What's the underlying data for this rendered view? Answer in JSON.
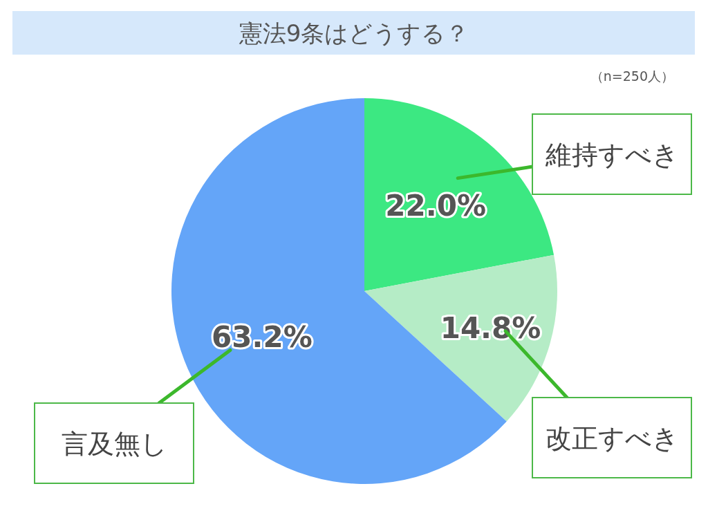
{
  "chart_data": {
    "type": "pie",
    "title": "憲法9条はどうする？",
    "annotations": [
      "（n=250人）"
    ],
    "categories": [
      "維持すべき",
      "改正すべき",
      "言及無し"
    ],
    "values": [
      22.0,
      14.8,
      63.2
    ],
    "colors": [
      "#3ce882",
      "#b5ecc6",
      "#64a5f8"
    ],
    "value_labels": [
      "22.0%",
      "14.8%",
      "63.2%"
    ]
  }
}
